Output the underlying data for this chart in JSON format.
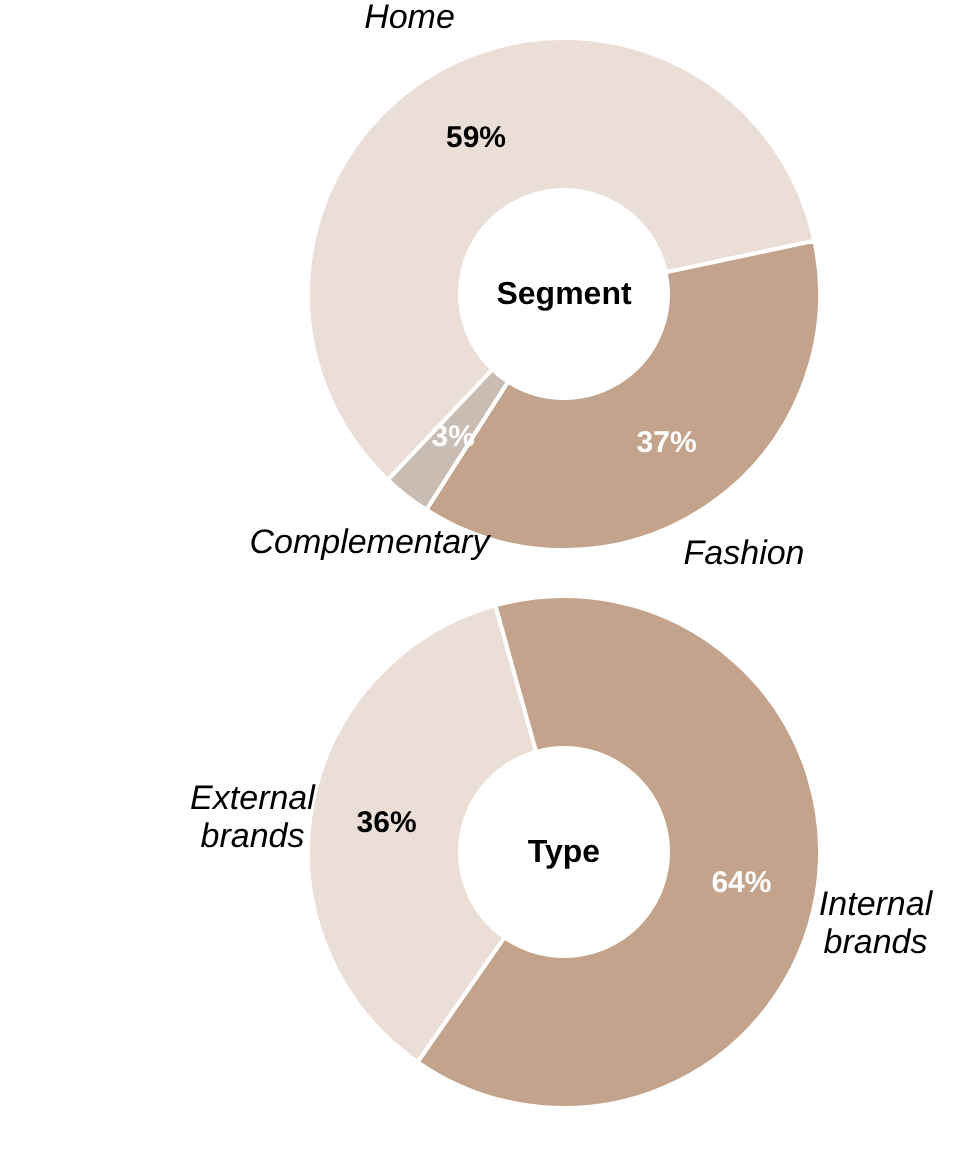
{
  "chart_data": [
    {
      "type": "donut",
      "title": "Segment",
      "categories": [
        "Home",
        "Fashion",
        "Complementary"
      ],
      "values": [
        59,
        37,
        3
      ],
      "value_labels": [
        "59%",
        "37%",
        "3%"
      ],
      "colors": [
        "#eaded7",
        "#c3a38b",
        "#c9bcb2"
      ]
    },
    {
      "type": "donut",
      "title": "Type",
      "categories": [
        "External brands",
        "Internal brands"
      ],
      "values": [
        36,
        64
      ],
      "value_labels": [
        "36%",
        "64%"
      ],
      "colors": [
        "#eaded7",
        "#c3a38b"
      ]
    }
  ]
}
